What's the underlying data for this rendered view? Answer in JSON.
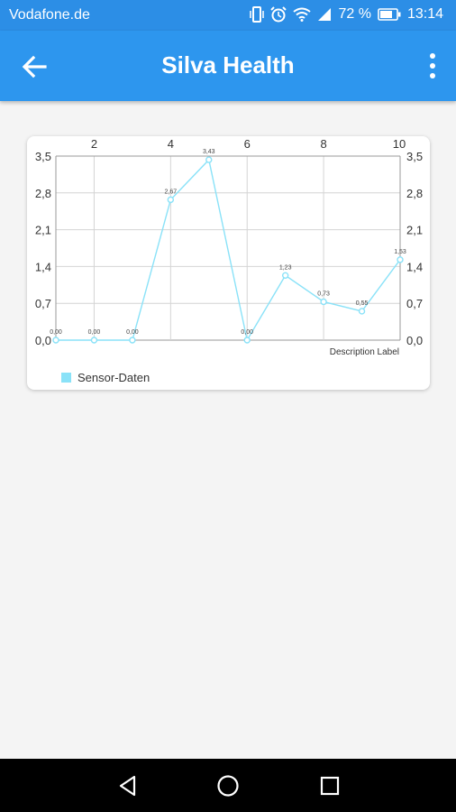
{
  "status_bar": {
    "carrier": "Vodafone.de",
    "battery": "72 %",
    "time": "13:14",
    "icons": [
      "vibrate-icon",
      "alarm-icon",
      "wifi-icon",
      "signal-icon",
      "battery-icon"
    ]
  },
  "app_bar": {
    "title": "Silva Health",
    "back_icon": "arrow-left-icon",
    "menu_icon": "more-vert-icon",
    "color": "#2d96ee"
  },
  "chart_data": {
    "type": "line",
    "x": [
      1,
      2,
      3,
      4,
      5,
      6,
      7,
      8,
      9,
      10
    ],
    "x_ticks": [
      "2",
      "4",
      "6",
      "8",
      "10"
    ],
    "x_tick_values": [
      2,
      4,
      6,
      8,
      10
    ],
    "y_ticks": [
      "0,0",
      "0,7",
      "1,4",
      "2,1",
      "2,8",
      "3,5"
    ],
    "y_tick_values": [
      0,
      0.7,
      1.4,
      2.1,
      2.8,
      3.5
    ],
    "xlim": [
      1,
      10
    ],
    "ylim": [
      0,
      3.5
    ],
    "grid": true,
    "description": "Description Label",
    "legend_position": "bottom-left",
    "series": [
      {
        "name": "Sensor-Daten",
        "color": "#8ae2f8",
        "values": [
          0.0,
          0.0,
          0.0,
          2.67,
          3.43,
          0.0,
          1.23,
          0.73,
          0.55,
          1.53
        ],
        "labels": [
          "0,00",
          "0,00",
          "0,00",
          "2,67",
          "3,43",
          "0,00",
          "1,23",
          "0,73",
          "0,55",
          "1,53"
        ]
      }
    ]
  },
  "nav_bar": {
    "back_icon": "triangle-back-icon",
    "home_icon": "circle-home-icon",
    "recents_icon": "square-recents-icon"
  }
}
